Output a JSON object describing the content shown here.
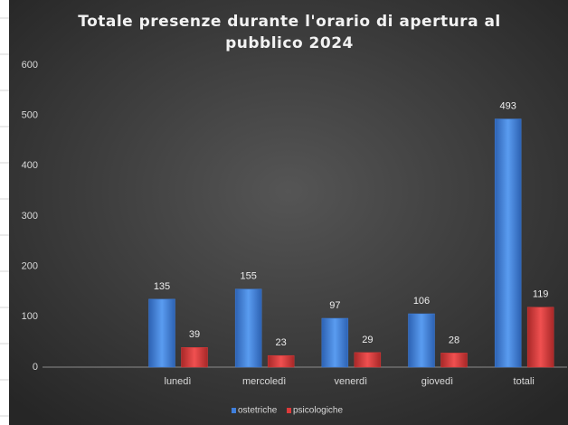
{
  "chart_data": {
    "type": "bar",
    "title": "Totale presenze durante l'orario di apertura al pubblico 2024",
    "categories": [
      null,
      "lunedì",
      "mercoledì",
      "venerdì",
      "giovedì",
      "totali"
    ],
    "series": [
      {
        "name": "ostetriche",
        "color": "#3f7fdc",
        "values": [
          null,
          135,
          155,
          97,
          106,
          493
        ]
      },
      {
        "name": "psicologiche",
        "color": "#dc3a3a",
        "values": [
          null,
          39,
          23,
          29,
          28,
          119
        ]
      }
    ],
    "ylim": [
      0,
      600
    ],
    "yticks": [
      0,
      100,
      200,
      300,
      400,
      500,
      600
    ],
    "legend": "bottom"
  }
}
